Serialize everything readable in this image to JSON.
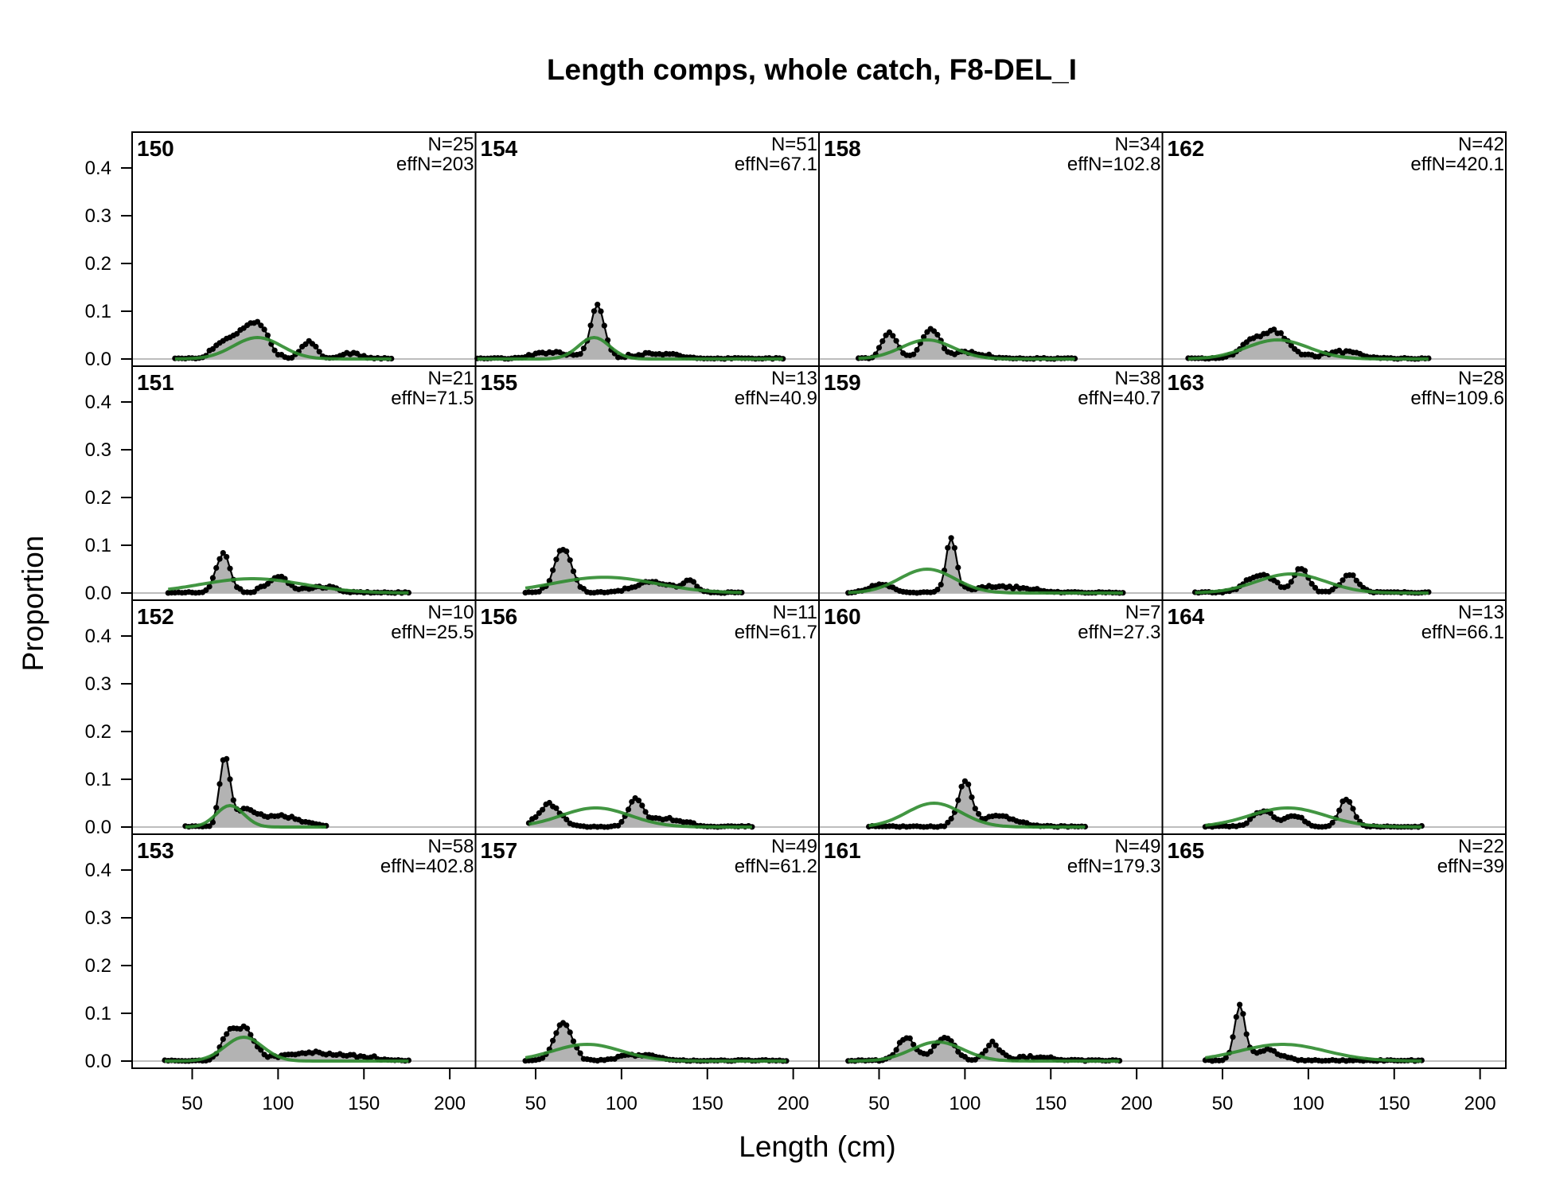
{
  "chart_data": {
    "type": "area",
    "title": "Length comps, whole catch, F8-DEL_I",
    "xlabel": "Length (cm)",
    "ylabel": "Proportion",
    "xlim": [
      15,
      215
    ],
    "ylim": [
      -0.015,
      0.475
    ],
    "x_ticks": [
      50,
      100,
      150,
      200
    ],
    "y_ticks": [
      0.0,
      0.1,
      0.2,
      0.3,
      0.4
    ],
    "y_tick_labels": [
      "0.0",
      "0.1",
      "0.2",
      "0.3",
      "0.4"
    ],
    "layout": "4 rows x 4 columns, filled column-wise",
    "colors": {
      "observed_fill": "#b3b3b3",
      "observed_line": "#000000",
      "expected_line": "#2e8b2e",
      "zero_line": "#bdbdbd"
    },
    "series_kinds": [
      "observed proportion (shaded with points)",
      "expected proportion (green line)"
    ],
    "panels": [
      {
        "label": "150",
        "N": "N=25",
        "effN": "effN=203",
        "xmin": 40,
        "xmax": 166,
        "obs_peaks": [
          [
            66,
            0.02,
            5
          ],
          [
            80,
            0.055,
            8
          ],
          [
            90,
            0.045,
            5
          ],
          [
            118,
            0.035,
            4
          ],
          [
            142,
            0.008,
            6
          ]
        ],
        "exp_mean": 88,
        "exp_sd": 14,
        "exp_peak": 0.045
      },
      {
        "label": "151",
        "N": "N=21",
        "effN": "effN=71.5",
        "xmin": 36,
        "xmax": 176,
        "obs_peaks": [
          [
            68,
            0.08,
            4
          ],
          [
            100,
            0.03,
            6
          ],
          [
            125,
            0.01,
            8
          ]
        ],
        "exp_mean": 85,
        "exp_sd": 30,
        "exp_peak": 0.03
      },
      {
        "label": "152",
        "N": "N=10",
        "effN": "effN=25.5",
        "xmin": 46,
        "xmax": 128,
        "obs_peaks": [
          [
            69,
            0.14,
            3
          ],
          [
            80,
            0.03,
            6
          ],
          [
            100,
            0.02,
            12
          ]
        ],
        "exp_mean": 72,
        "exp_sd": 8,
        "exp_peak": 0.045
      },
      {
        "label": "153",
        "N": "N=58",
        "effN": "effN=402.8",
        "xmin": 34,
        "xmax": 176,
        "obs_peaks": [
          [
            80,
            0.065,
            6
          ],
          [
            70,
            0.04,
            4
          ],
          [
            120,
            0.015,
            15
          ],
          [
            150,
            0.005,
            8
          ]
        ],
        "exp_mean": 80,
        "exp_sd": 11,
        "exp_peak": 0.05
      },
      {
        "label": "154",
        "N": "N=51",
        "effN": "effN=67.1",
        "xmin": 16,
        "xmax": 194,
        "obs_peaks": [
          [
            86,
            0.11,
            4
          ],
          [
            60,
            0.01,
            10
          ],
          [
            120,
            0.008,
            12
          ]
        ],
        "exp_mean": 84,
        "exp_sd": 9,
        "exp_peak": 0.045
      },
      {
        "label": "155",
        "N": "N=13",
        "effN": "effN=40.9",
        "xmin": 44,
        "xmax": 170,
        "obs_peaks": [
          [
            66,
            0.09,
            5
          ],
          [
            118,
            0.02,
            10
          ],
          [
            140,
            0.02,
            4
          ]
        ],
        "exp_mean": 90,
        "exp_sd": 30,
        "exp_peak": 0.033
      },
      {
        "label": "156",
        "N": "N=11",
        "effN": "effN=61.7",
        "xmin": 46,
        "xmax": 176,
        "obs_peaks": [
          [
            58,
            0.045,
            6
          ],
          [
            108,
            0.055,
            4
          ],
          [
            125,
            0.015,
            10
          ]
        ],
        "exp_mean": 85,
        "exp_sd": 20,
        "exp_peak": 0.04
      },
      {
        "label": "157",
        "N": "N=49",
        "effN": "effN=61.2",
        "xmin": 44,
        "xmax": 196,
        "obs_peaks": [
          [
            66,
            0.08,
            5
          ],
          [
            110,
            0.01,
            10
          ]
        ],
        "exp_mean": 80,
        "exp_sd": 20,
        "exp_peak": 0.035
      },
      {
        "label": "158",
        "N": "N=34",
        "effN": "effN=102.8",
        "xmin": 38,
        "xmax": 164,
        "obs_peaks": [
          [
            56,
            0.055,
            4
          ],
          [
            80,
            0.06,
            5
          ],
          [
            100,
            0.01,
            10
          ]
        ],
        "exp_mean": 78,
        "exp_sd": 15,
        "exp_peak": 0.04
      },
      {
        "label": "159",
        "N": "N=38",
        "effN": "effN=40.7",
        "xmin": 32,
        "xmax": 192,
        "obs_peaks": [
          [
            92,
            0.11,
            3
          ],
          [
            50,
            0.015,
            6
          ],
          [
            120,
            0.01,
            15
          ]
        ],
        "exp_mean": 78,
        "exp_sd": 16,
        "exp_peak": 0.05
      },
      {
        "label": "160",
        "N": "N=7",
        "effN": "effN=27.3",
        "xmin": 44,
        "xmax": 170,
        "obs_peaks": [
          [
            100,
            0.09,
            4
          ],
          [
            120,
            0.02,
            10
          ]
        ],
        "exp_mean": 82,
        "exp_sd": 16,
        "exp_peak": 0.05
      },
      {
        "label": "161",
        "N": "N=49",
        "effN": "effN=179.3",
        "xmin": 32,
        "xmax": 190,
        "obs_peaks": [
          [
            66,
            0.045,
            5
          ],
          [
            88,
            0.045,
            6
          ],
          [
            116,
            0.035,
            4
          ],
          [
            140,
            0.005,
            10
          ]
        ],
        "exp_mean": 84,
        "exp_sd": 15,
        "exp_peak": 0.04
      },
      {
        "label": "162",
        "N": "N=42",
        "effN": "effN=420.1",
        "xmin": 30,
        "xmax": 170,
        "obs_peaks": [
          [
            80,
            0.055,
            8
          ],
          [
            65,
            0.025,
            6
          ],
          [
            120,
            0.012,
            10
          ]
        ],
        "exp_mean": 82,
        "exp_sd": 18,
        "exp_peak": 0.04
      },
      {
        "label": "163",
        "N": "N=28",
        "effN": "effN=109.6",
        "xmin": 34,
        "xmax": 170,
        "obs_peaks": [
          [
            72,
            0.035,
            8
          ],
          [
            96,
            0.05,
            4
          ],
          [
            124,
            0.035,
            5
          ]
        ],
        "exp_mean": 90,
        "exp_sd": 20,
        "exp_peak": 0.04
      },
      {
        "label": "164",
        "N": "N=13",
        "effN": "effN=66.1",
        "xmin": 40,
        "xmax": 166,
        "obs_peaks": [
          [
            74,
            0.03,
            6
          ],
          [
            92,
            0.02,
            5
          ],
          [
            122,
            0.055,
            4
          ]
        ],
        "exp_mean": 88,
        "exp_sd": 22,
        "exp_peak": 0.04
      },
      {
        "label": "165",
        "N": "N=22",
        "effN": "effN=39",
        "xmin": 40,
        "xmax": 166,
        "obs_peaks": [
          [
            60,
            0.11,
            3
          ],
          [
            75,
            0.02,
            8
          ]
        ],
        "exp_mean": 85,
        "exp_sd": 25,
        "exp_peak": 0.035
      }
    ]
  }
}
